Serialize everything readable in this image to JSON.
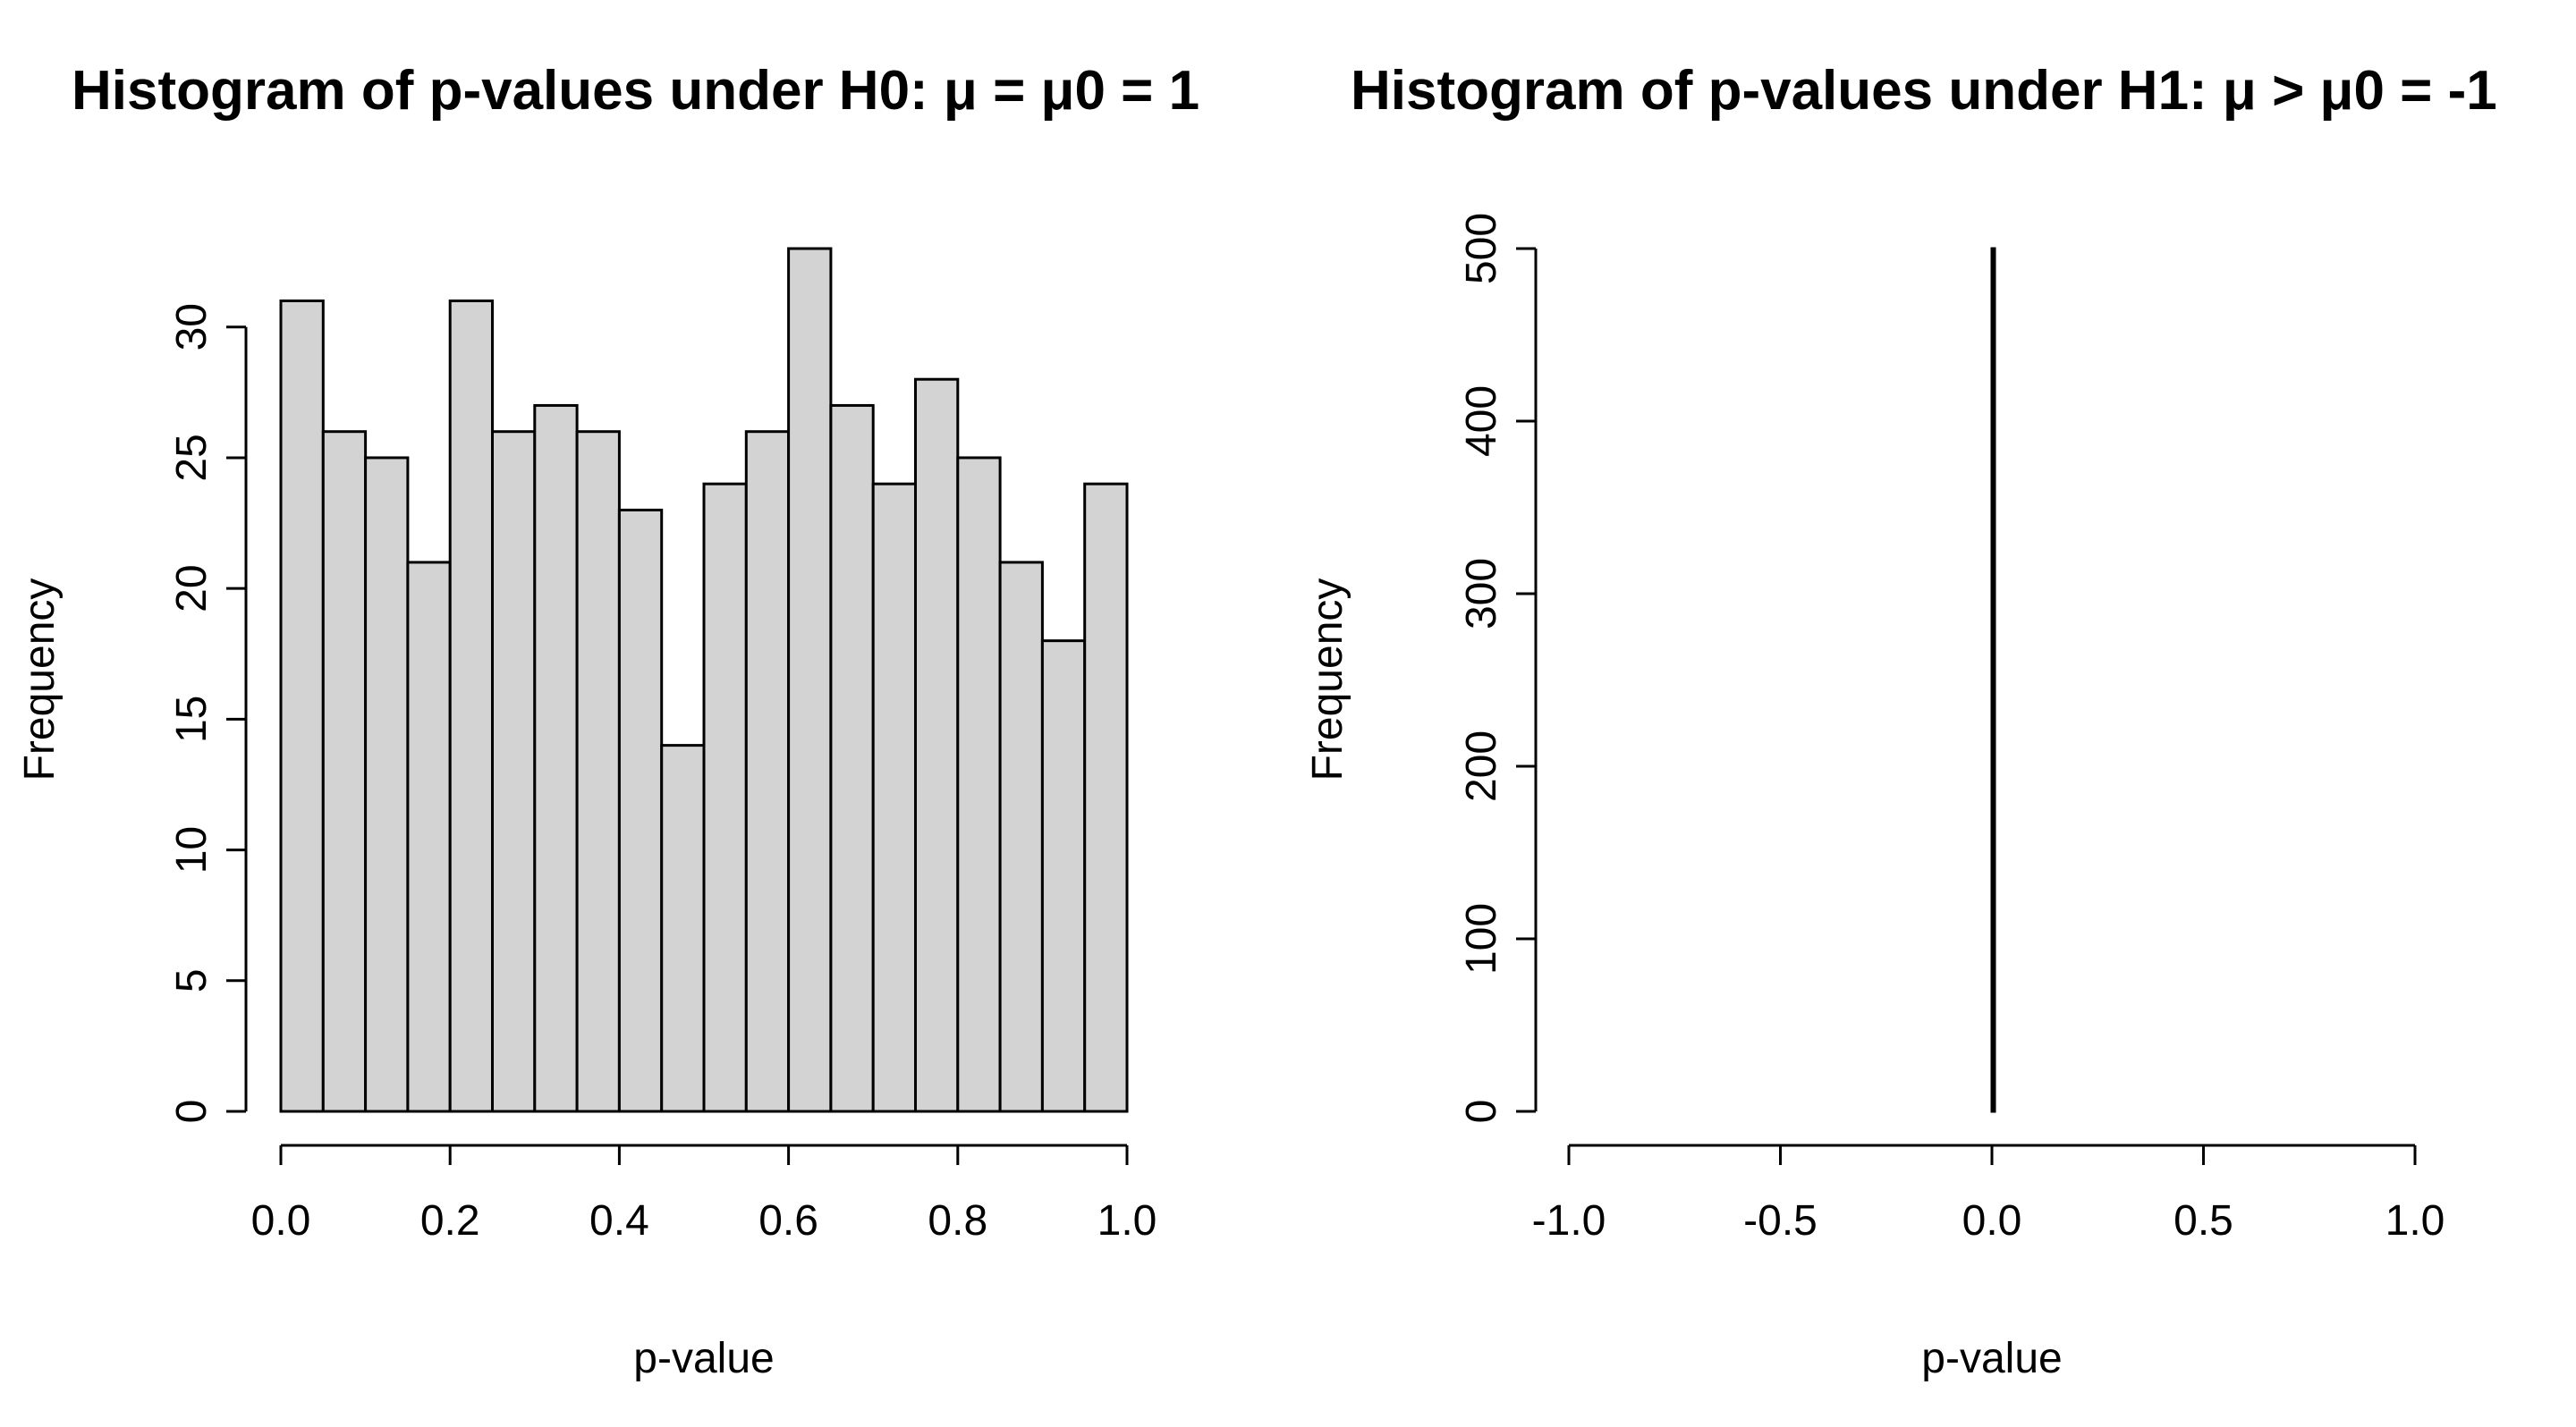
{
  "chart_data": [
    {
      "type": "bar",
      "title": "Histogram of p-values under H0: μ = μ0 = 1",
      "xlabel": "p-value",
      "ylabel": "Frequency",
      "xlim": [
        0,
        1
      ],
      "ylim": [
        0,
        33
      ],
      "x_ticks": [
        "0.0",
        "0.2",
        "0.4",
        "0.6",
        "0.8",
        "1.0"
      ],
      "y_ticks": [
        "0",
        "5",
        "10",
        "15",
        "20",
        "25",
        "30"
      ],
      "bin_edges": [
        0,
        0.05,
        0.1,
        0.15,
        0.2,
        0.25,
        0.3,
        0.35,
        0.4,
        0.45,
        0.5,
        0.55,
        0.6,
        0.65,
        0.7,
        0.75,
        0.8,
        0.85,
        0.9,
        0.95,
        1.0
      ],
      "values": [
        31,
        26,
        25,
        21,
        31,
        26,
        27,
        26,
        23,
        14,
        24,
        26,
        33,
        27,
        24,
        28,
        25,
        21,
        18,
        24
      ],
      "bar_color": "#d3d3d3"
    },
    {
      "type": "bar",
      "title": "Histogram of p-values under H1: μ > μ0 = -1",
      "xlabel": "p-value",
      "ylabel": "Frequency",
      "xlim": [
        -1,
        1
      ],
      "ylim": [
        0,
        500
      ],
      "x_ticks": [
        "-1.0",
        "-0.5",
        "0.0",
        "0.5",
        "1.0"
      ],
      "y_ticks": [
        "0",
        "100",
        "200",
        "300",
        "400",
        "500"
      ],
      "bin_edges": [
        0,
        0.005
      ],
      "values": [
        500
      ],
      "bar_color": "#d3d3d3"
    }
  ]
}
